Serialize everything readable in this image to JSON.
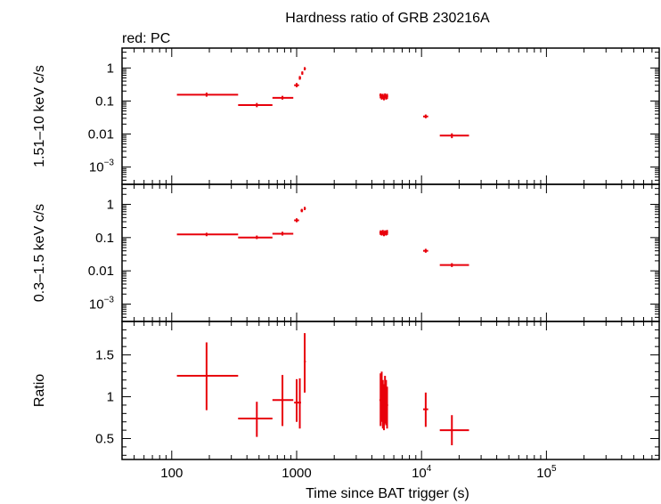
{
  "chart_data": {
    "type": "scatter",
    "title": "Hardness ratio of GRB 230216A",
    "subtitle": "red: PC",
    "xlabel": "Time since BAT trigger (s)",
    "xscale": "log",
    "xlim": [
      40,
      800000
    ],
    "x_tick_labels": [
      {
        "value": 100,
        "label": "100"
      },
      {
        "value": 1000,
        "label": "1000"
      },
      {
        "value": 10000,
        "base": "10",
        "exp": "4"
      },
      {
        "value": 100000,
        "base": "10",
        "exp": "5"
      }
    ],
    "color": "#e8000b",
    "panels": [
      {
        "name": "hard",
        "ylabel": "1.51–10 keV c/s",
        "yscale": "log",
        "ylim": [
          0.0003,
          4
        ],
        "y_tick_labels": [
          {
            "value": 1,
            "label": "1"
          },
          {
            "value": 0.1,
            "label": "0.1"
          },
          {
            "value": 0.01,
            "label": "0.01"
          },
          {
            "value": 0.001,
            "base": "10",
            "exp": "−3"
          }
        ],
        "points": [
          {
            "x": 190,
            "xlo": 110,
            "xhi": 340,
            "y": 0.155,
            "ylo": 0.135,
            "yhi": 0.18
          },
          {
            "x": 480,
            "xlo": 340,
            "xhi": 640,
            "y": 0.075,
            "ylo": 0.065,
            "yhi": 0.087
          },
          {
            "x": 770,
            "xlo": 640,
            "xhi": 940,
            "y": 0.125,
            "ylo": 0.11,
            "yhi": 0.143
          },
          {
            "x": 1000,
            "xlo": 955,
            "xhi": 1045,
            "y": 0.3,
            "ylo": 0.26,
            "yhi": 0.35
          },
          {
            "x": 1060,
            "xlo": 1040,
            "xhi": 1085,
            "y": 0.5,
            "ylo": 0.44,
            "yhi": 0.57
          },
          {
            "x": 1110,
            "xlo": 1090,
            "xhi": 1130,
            "y": 0.7,
            "ylo": 0.62,
            "yhi": 0.79
          },
          {
            "x": 1160,
            "xlo": 1140,
            "xhi": 1185,
            "y": 0.95,
            "ylo": 0.85,
            "yhi": 1.06
          },
          {
            "x": 4700,
            "xlo": 4600,
            "xhi": 4800,
            "y": 0.15,
            "ylo": 0.12,
            "yhi": 0.17
          },
          {
            "x": 4800,
            "xlo": 4700,
            "xhi": 4900,
            "y": 0.13,
            "ylo": 0.11,
            "yhi": 0.16
          },
          {
            "x": 4900,
            "xlo": 4800,
            "xhi": 5000,
            "y": 0.14,
            "ylo": 0.115,
            "yhi": 0.165
          },
          {
            "x": 5000,
            "xlo": 4900,
            "xhi": 5100,
            "y": 0.125,
            "ylo": 0.105,
            "yhi": 0.15
          },
          {
            "x": 5100,
            "xlo": 5000,
            "xhi": 5200,
            "y": 0.145,
            "ylo": 0.12,
            "yhi": 0.17
          },
          {
            "x": 5200,
            "xlo": 5100,
            "xhi": 5300,
            "y": 0.13,
            "ylo": 0.11,
            "yhi": 0.155
          },
          {
            "x": 5300,
            "xlo": 5200,
            "xhi": 5400,
            "y": 0.14,
            "ylo": 0.115,
            "yhi": 0.165
          },
          {
            "x": 10800,
            "xlo": 10300,
            "xhi": 11300,
            "y": 0.034,
            "ylo": 0.03,
            "yhi": 0.039
          },
          {
            "x": 17500,
            "xlo": 14000,
            "xhi": 24000,
            "y": 0.009,
            "ylo": 0.0075,
            "yhi": 0.0105
          }
        ]
      },
      {
        "name": "soft",
        "ylabel": "0.3–1.5 keV c/s",
        "yscale": "log",
        "ylim": [
          0.0003,
          4
        ],
        "y_tick_labels": [
          {
            "value": 1,
            "label": "1"
          },
          {
            "value": 0.1,
            "label": "0.1"
          },
          {
            "value": 0.01,
            "label": "0.01"
          },
          {
            "value": 0.001,
            "base": "10",
            "exp": "−3"
          }
        ],
        "points": [
          {
            "x": 190,
            "xlo": 110,
            "xhi": 340,
            "y": 0.125,
            "ylo": 0.11,
            "yhi": 0.14
          },
          {
            "x": 480,
            "xlo": 340,
            "xhi": 640,
            "y": 0.1,
            "ylo": 0.09,
            "yhi": 0.115
          },
          {
            "x": 770,
            "xlo": 640,
            "xhi": 940,
            "y": 0.13,
            "ylo": 0.115,
            "yhi": 0.15
          },
          {
            "x": 1000,
            "xlo": 955,
            "xhi": 1045,
            "y": 0.33,
            "ylo": 0.29,
            "yhi": 0.38
          },
          {
            "x": 1100,
            "xlo": 1075,
            "xhi": 1125,
            "y": 0.65,
            "ylo": 0.58,
            "yhi": 0.73
          },
          {
            "x": 1160,
            "xlo": 1140,
            "xhi": 1185,
            "y": 0.75,
            "ylo": 0.67,
            "yhi": 0.84
          },
          {
            "x": 4700,
            "xlo": 4600,
            "xhi": 4800,
            "y": 0.14,
            "ylo": 0.12,
            "yhi": 0.165
          },
          {
            "x": 4800,
            "xlo": 4700,
            "xhi": 4900,
            "y": 0.135,
            "ylo": 0.115,
            "yhi": 0.16
          },
          {
            "x": 4900,
            "xlo": 4800,
            "xhi": 5000,
            "y": 0.145,
            "ylo": 0.12,
            "yhi": 0.17
          },
          {
            "x": 5000,
            "xlo": 4900,
            "xhi": 5100,
            "y": 0.13,
            "ylo": 0.11,
            "yhi": 0.155
          },
          {
            "x": 5100,
            "xlo": 5000,
            "xhi": 5200,
            "y": 0.14,
            "ylo": 0.12,
            "yhi": 0.165
          },
          {
            "x": 5200,
            "xlo": 5100,
            "xhi": 5300,
            "y": 0.135,
            "ylo": 0.115,
            "yhi": 0.16
          },
          {
            "x": 5300,
            "xlo": 5200,
            "xhi": 5400,
            "y": 0.145,
            "ylo": 0.12,
            "yhi": 0.17
          },
          {
            "x": 10800,
            "xlo": 10300,
            "xhi": 11300,
            "y": 0.04,
            "ylo": 0.035,
            "yhi": 0.046
          },
          {
            "x": 17500,
            "xlo": 14000,
            "xhi": 24000,
            "y": 0.015,
            "ylo": 0.013,
            "yhi": 0.017
          }
        ]
      },
      {
        "name": "ratio",
        "ylabel": "Ratio",
        "yscale": "linear",
        "ylim": [
          0.25,
          1.9
        ],
        "y_tick_labels": [
          {
            "value": 1.5,
            "label": "1.5"
          },
          {
            "value": 1,
            "label": "1"
          },
          {
            "value": 0.5,
            "label": "0.5"
          }
        ],
        "points": [
          {
            "x": 190,
            "xlo": 110,
            "xhi": 340,
            "y": 1.25,
            "ylo": 0.84,
            "yhi": 1.65
          },
          {
            "x": 480,
            "xlo": 340,
            "xhi": 640,
            "y": 0.74,
            "ylo": 0.52,
            "yhi": 0.94
          },
          {
            "x": 770,
            "xlo": 640,
            "xhi": 940,
            "y": 0.96,
            "ylo": 0.65,
            "yhi": 1.26
          },
          {
            "x": 1000,
            "xlo": 955,
            "xhi": 1045,
            "y": 0.93,
            "ylo": 0.7,
            "yhi": 1.21
          },
          {
            "x": 1060,
            "xlo": 1040,
            "xhi": 1085,
            "y": 0.93,
            "ylo": 0.62,
            "yhi": 1.22
          },
          {
            "x": 1160,
            "xlo": 1140,
            "xhi": 1185,
            "y": 1.42,
            "ylo": 1.05,
            "yhi": 1.76
          },
          {
            "x": 4700,
            "xlo": 4600,
            "xhi": 4800,
            "y": 0.96,
            "ylo": 0.65,
            "yhi": 1.28
          },
          {
            "x": 4800,
            "xlo": 4700,
            "xhi": 4900,
            "y": 1.02,
            "ylo": 0.7,
            "yhi": 1.3
          },
          {
            "x": 4900,
            "xlo": 4800,
            "xhi": 5000,
            "y": 0.95,
            "ylo": 0.62,
            "yhi": 1.2
          },
          {
            "x": 5000,
            "xlo": 4900,
            "xhi": 5100,
            "y": 0.9,
            "ylo": 0.6,
            "yhi": 1.15
          },
          {
            "x": 5100,
            "xlo": 5000,
            "xhi": 5200,
            "y": 0.98,
            "ylo": 0.68,
            "yhi": 1.25
          },
          {
            "x": 5200,
            "xlo": 5100,
            "xhi": 5300,
            "y": 0.95,
            "ylo": 0.66,
            "yhi": 1.2
          },
          {
            "x": 5300,
            "xlo": 5200,
            "xhi": 5400,
            "y": 0.9,
            "ylo": 0.62,
            "yhi": 1.12
          },
          {
            "x": 10800,
            "xlo": 10300,
            "xhi": 11300,
            "y": 0.85,
            "ylo": 0.64,
            "yhi": 1.05
          },
          {
            "x": 17500,
            "xlo": 14000,
            "xhi": 24000,
            "y": 0.6,
            "ylo": 0.42,
            "yhi": 0.78
          }
        ]
      }
    ]
  }
}
